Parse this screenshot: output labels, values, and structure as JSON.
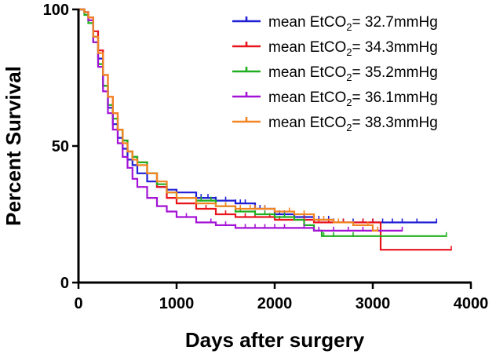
{
  "chart_data": {
    "type": "line",
    "title": "",
    "xlabel": "Days after surgery",
    "ylabel": "Percent Survival",
    "xlim": [
      0,
      4000
    ],
    "ylim": [
      0,
      100
    ],
    "x_ticks": [
      0,
      1000,
      2000,
      3000,
      4000
    ],
    "y_ticks": [
      0,
      50,
      100
    ],
    "legend_position": "top-right",
    "series": [
      {
        "name": "mean EtCO2= 32.7mmHg",
        "label_prefix": "mean EtCO",
        "label_sub": "2",
        "label_suffix": "= 32.7mmHg",
        "color": "#1f1fd6",
        "points": [
          [
            0,
            100
          ],
          [
            60,
            99
          ],
          [
            100,
            97
          ],
          [
            150,
            90
          ],
          [
            200,
            82
          ],
          [
            250,
            72
          ],
          [
            300,
            64
          ],
          [
            350,
            58
          ],
          [
            400,
            53
          ],
          [
            450,
            49
          ],
          [
            500,
            45
          ],
          [
            550,
            43
          ],
          [
            600,
            40
          ],
          [
            700,
            37
          ],
          [
            800,
            35
          ],
          [
            900,
            34
          ],
          [
            1000,
            33
          ],
          [
            1200,
            31
          ],
          [
            1400,
            30
          ],
          [
            1600,
            29
          ],
          [
            1800,
            27
          ],
          [
            2000,
            25
          ],
          [
            2200,
            24
          ],
          [
            2400,
            23
          ],
          [
            2600,
            22
          ],
          [
            3000,
            22
          ],
          [
            3650,
            22
          ]
        ],
        "censors": [
          1250,
          1320,
          1400,
          1500,
          1600,
          1650,
          1700,
          1800,
          1850,
          1900,
          2000,
          2050,
          2100,
          2200,
          2300,
          2400,
          2450,
          2550,
          2600,
          2700,
          2800,
          2900,
          3000,
          3100,
          3200,
          3300,
          3450,
          3650
        ]
      },
      {
        "name": "mean EtCO2= 34.3mmHg",
        "label_prefix": "mean EtCO",
        "label_sub": "2",
        "label_suffix": "= 34.3mmHg",
        "color": "#e8141c",
        "points": [
          [
            0,
            100
          ],
          [
            60,
            99
          ],
          [
            100,
            97
          ],
          [
            150,
            92
          ],
          [
            200,
            85
          ],
          [
            250,
            76
          ],
          [
            300,
            68
          ],
          [
            350,
            62
          ],
          [
            400,
            56
          ],
          [
            450,
            52
          ],
          [
            500,
            48
          ],
          [
            550,
            46
          ],
          [
            600,
            44
          ],
          [
            700,
            40
          ],
          [
            800,
            35
          ],
          [
            900,
            31
          ],
          [
            1000,
            29
          ],
          [
            1200,
            27
          ],
          [
            1400,
            25
          ],
          [
            1600,
            24
          ],
          [
            1800,
            24
          ],
          [
            2000,
            23
          ],
          [
            2200,
            23
          ],
          [
            2400,
            22
          ],
          [
            2600,
            22
          ],
          [
            3000,
            22
          ],
          [
            3080,
            12
          ],
          [
            3800,
            12
          ]
        ],
        "censors": [
          1300,
          1400,
          1500,
          1700,
          1800,
          1950,
          2050,
          2200,
          2300,
          2450,
          2550,
          2700,
          2900,
          3000,
          3800
        ]
      },
      {
        "name": "mean EtCO2= 35.2mmHg",
        "label_prefix": "mean EtCO",
        "label_sub": "2",
        "label_suffix": "= 35.2mmHg",
        "color": "#1fae1f",
        "points": [
          [
            0,
            100
          ],
          [
            60,
            98
          ],
          [
            100,
            95
          ],
          [
            150,
            88
          ],
          [
            200,
            80
          ],
          [
            250,
            72
          ],
          [
            300,
            65
          ],
          [
            350,
            60
          ],
          [
            400,
            56
          ],
          [
            450,
            52
          ],
          [
            500,
            48
          ],
          [
            550,
            46
          ],
          [
            600,
            44
          ],
          [
            700,
            40
          ],
          [
            800,
            36
          ],
          [
            900,
            33
          ],
          [
            1000,
            31
          ],
          [
            1200,
            30
          ],
          [
            1400,
            28
          ],
          [
            1600,
            26
          ],
          [
            1800,
            25
          ],
          [
            2000,
            24
          ],
          [
            2200,
            23
          ],
          [
            2300,
            21
          ],
          [
            2400,
            19
          ],
          [
            2480,
            17
          ],
          [
            3000,
            17
          ],
          [
            3750,
            17
          ]
        ],
        "censors": [
          1250,
          1350,
          1500,
          1650,
          1800,
          1900,
          2000,
          2100,
          2200,
          2500,
          2600,
          2800,
          3750
        ]
      },
      {
        "name": "mean EtCO2= 36.1mmHg",
        "label_prefix": "mean EtCO",
        "label_sub": "2",
        "label_suffix": "= 36.1mmHg",
        "color": "#a312d6",
        "points": [
          [
            0,
            100
          ],
          [
            60,
            99
          ],
          [
            100,
            96
          ],
          [
            150,
            88
          ],
          [
            200,
            79
          ],
          [
            250,
            70
          ],
          [
            300,
            62
          ],
          [
            350,
            56
          ],
          [
            400,
            51
          ],
          [
            450,
            46
          ],
          [
            500,
            42
          ],
          [
            550,
            38
          ],
          [
            600,
            35
          ],
          [
            700,
            31
          ],
          [
            800,
            28
          ],
          [
            900,
            26
          ],
          [
            1000,
            24
          ],
          [
            1200,
            22
          ],
          [
            1400,
            21
          ],
          [
            1600,
            20
          ],
          [
            2000,
            20
          ],
          [
            2200,
            20
          ],
          [
            2400,
            19
          ],
          [
            3300,
            19
          ]
        ],
        "censors": [
          1100,
          1200,
          1350,
          1500,
          1600,
          1700,
          1800,
          1900,
          2000,
          2100,
          2300,
          2450,
          2600,
          2750,
          2900,
          3050,
          3300
        ]
      },
      {
        "name": "mean EtCO2= 38.3mmHg",
        "label_prefix": "mean EtCO",
        "label_sub": "2",
        "label_suffix": "= 38.3mmHg",
        "color": "#f28522",
        "points": [
          [
            0,
            100
          ],
          [
            60,
            99
          ],
          [
            100,
            97
          ],
          [
            150,
            90
          ],
          [
            200,
            84
          ],
          [
            250,
            76
          ],
          [
            300,
            68
          ],
          [
            350,
            62
          ],
          [
            400,
            56
          ],
          [
            450,
            51
          ],
          [
            500,
            48
          ],
          [
            550,
            45
          ],
          [
            600,
            43
          ],
          [
            700,
            40
          ],
          [
            800,
            37
          ],
          [
            900,
            33
          ],
          [
            1000,
            31
          ],
          [
            1200,
            29
          ],
          [
            1400,
            28
          ],
          [
            1600,
            27
          ],
          [
            1800,
            27
          ],
          [
            2000,
            26
          ],
          [
            2200,
            25
          ],
          [
            2400,
            23
          ],
          [
            2600,
            22
          ],
          [
            2800,
            21
          ],
          [
            3000,
            19
          ],
          [
            3050,
            19
          ]
        ],
        "censors": [
          1200,
          1500,
          1650,
          1750,
          1800,
          1900,
          2000,
          2150,
          2300,
          2500,
          2650,
          2800,
          2950,
          3050
        ]
      }
    ]
  }
}
